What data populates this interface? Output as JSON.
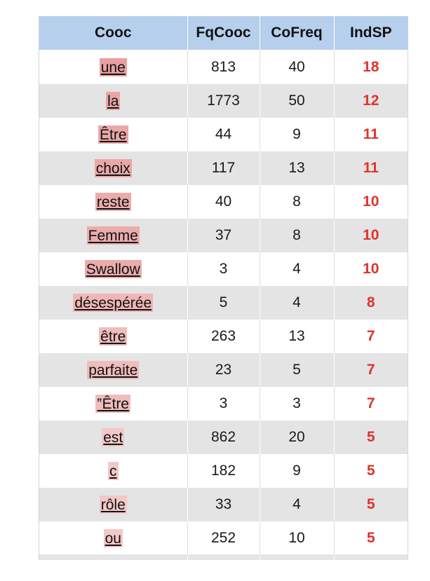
{
  "table": {
    "headers": [
      "Cooc",
      "FqCooc",
      "CoFreq",
      "IndSP"
    ],
    "rows": [
      {
        "word": "une",
        "fqcooc": "813",
        "cofreq": "40",
        "indsp": "18",
        "highlight": "#e9a0a0"
      },
      {
        "word": "la",
        "fqcooc": "1773",
        "cofreq": "50",
        "indsp": "12",
        "highlight": "#eaa6a6"
      },
      {
        "word": "Être",
        "fqcooc": "44",
        "cofreq": "9",
        "indsp": "11",
        "highlight": "#eba8a8"
      },
      {
        "word": "choix",
        "fqcooc": "117",
        "cofreq": "13",
        "indsp": "11",
        "highlight": "#eba8a8"
      },
      {
        "word": "reste",
        "fqcooc": "40",
        "cofreq": "8",
        "indsp": "10",
        "highlight": "#ecacac"
      },
      {
        "word": "Femme",
        "fqcooc": "37",
        "cofreq": "8",
        "indsp": "10",
        "highlight": "#ecacac"
      },
      {
        "word": "Swallow",
        "fqcooc": "3",
        "cofreq": "4",
        "indsp": "10",
        "highlight": "#ecacac"
      },
      {
        "word": "désespérée",
        "fqcooc": "5",
        "cofreq": "4",
        "indsp": "8",
        "highlight": "#efb6b6"
      },
      {
        "word": "être",
        "fqcooc": "263",
        "cofreq": "13",
        "indsp": "7",
        "highlight": "#f0bcbc"
      },
      {
        "word": "parfaite",
        "fqcooc": "23",
        "cofreq": "5",
        "indsp": "7",
        "highlight": "#f0bcbc"
      },
      {
        "word": "‟Être",
        "fqcooc": "3",
        "cofreq": "3",
        "indsp": "7",
        "highlight": "#f0bcbc"
      },
      {
        "word": "est",
        "fqcooc": "862",
        "cofreq": "20",
        "indsp": "5",
        "highlight": "#f3c8c8"
      },
      {
        "word": "c",
        "fqcooc": "182",
        "cofreq": "9",
        "indsp": "5",
        "highlight": "#f3c8c8"
      },
      {
        "word": "rôle",
        "fqcooc": "33",
        "cofreq": "4",
        "indsp": "5",
        "highlight": "#f3c8c8"
      },
      {
        "word": "ou",
        "fqcooc": "252",
        "cofreq": "10",
        "indsp": "5",
        "highlight": "#f3c8c8"
      }
    ]
  },
  "colors": {
    "header_bg": "#b6cfec",
    "row_alt_bg": "#e4e4e4",
    "indsp_text": "#e0322b"
  }
}
